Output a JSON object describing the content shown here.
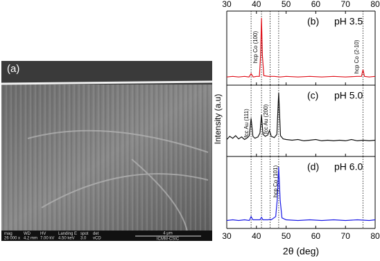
{
  "image": {
    "label": "(a)",
    "info": {
      "headers": [
        "mag",
        "WD",
        "HV",
        "Landing E",
        "spot",
        "det"
      ],
      "values": [
        "26 000 x",
        "4.2 mm",
        "7.00 kV",
        "4.50 keV",
        "3.0",
        "vCD"
      ],
      "scale": "4 μm",
      "source": "ICMM-CSIC"
    }
  },
  "chart_data": [
    {
      "type": "line",
      "label": "(b)",
      "title": "pH 3.5",
      "xlim": [
        30,
        80
      ],
      "xticks": [
        30,
        40,
        50,
        60,
        70,
        80
      ],
      "ylim": [
        0,
        100
      ],
      "reference_lines": [
        38.2,
        41.7,
        44.6,
        47.5,
        75.9
      ],
      "annotations": [
        "hcp Co (100)",
        "hcp Co (2-10)"
      ],
      "x": [
        30,
        32,
        34,
        36,
        37.5,
        38.2,
        38.9,
        40,
        41,
        41.4,
        41.7,
        42,
        42.5,
        44,
        46,
        48,
        50,
        54,
        58,
        62,
        66,
        70,
        74,
        75.4,
        75.9,
        76.4,
        78,
        80
      ],
      "series": [
        {
          "color": "#e0101a",
          "values": [
            8,
            9,
            8,
            9,
            8,
            13,
            8,
            9,
            9,
            40,
            96,
            40,
            10,
            9,
            9,
            8,
            9,
            8,
            9,
            8,
            9,
            8,
            9,
            9,
            19,
            9,
            8,
            9
          ]
        }
      ]
    },
    {
      "type": "line",
      "label": "(c)",
      "title": "pH 5.0",
      "ylabel": "Intensity (a.u)",
      "xlim": [
        30,
        80
      ],
      "xticks": [
        30,
        40,
        50,
        60,
        70,
        80
      ],
      "ylim": [
        0,
        100
      ],
      "reference_lines": [
        38.2,
        41.7,
        44.6,
        47.5,
        75.9
      ],
      "annotations": [
        "fcc Au (111)",
        "fcc Au (200)"
      ],
      "x": [
        30,
        31,
        32,
        33,
        34,
        35,
        36,
        37,
        37.6,
        38.2,
        38.8,
        39.5,
        40.5,
        41.2,
        41.7,
        42.2,
        43,
        43.8,
        44.4,
        45,
        46,
        46.9,
        47.5,
        48.1,
        49,
        50,
        52,
        54,
        56,
        58,
        60,
        62,
        64,
        66,
        68,
        70,
        72,
        74,
        76,
        78,
        80
      ],
      "series": [
        {
          "color": "#111111",
          "values": [
            22,
            27,
            24,
            28,
            23,
            26,
            22,
            25,
            28,
            55,
            27,
            24,
            26,
            32,
            60,
            30,
            27,
            29,
            36,
            27,
            25,
            30,
            95,
            28,
            23,
            22,
            21,
            22,
            20,
            21,
            22,
            20,
            21,
            20,
            21,
            20,
            22,
            20,
            21,
            20,
            21
          ]
        }
      ]
    },
    {
      "type": "line",
      "label": "(d)",
      "title": "pH 6.0",
      "xlabel": "2θ (deg)",
      "xlim": [
        30,
        80
      ],
      "xticks": [
        30,
        40,
        50,
        60,
        70,
        80
      ],
      "ylim": [
        0,
        100
      ],
      "reference_lines": [
        38.2,
        41.7,
        44.6,
        47.5,
        75.9
      ],
      "annotations": [
        "hcp Co (101)"
      ],
      "x": [
        30,
        32,
        34,
        36,
        37.6,
        38.2,
        38.8,
        40,
        41.2,
        41.7,
        42.2,
        44,
        44.5,
        45,
        46.5,
        47,
        47.5,
        48,
        48.6,
        50,
        54,
        58,
        62,
        66,
        70,
        74,
        78,
        80
      ],
      "series": [
        {
          "color": "#1a1ae6",
          "values": [
            8,
            9,
            8,
            9,
            8,
            14,
            9,
            9,
            9,
            13,
            9,
            9,
            10,
            9,
            14,
            40,
            90,
            40,
            12,
            9,
            8,
            9,
            8,
            9,
            8,
            9,
            8,
            9
          ]
        }
      ]
    }
  ]
}
